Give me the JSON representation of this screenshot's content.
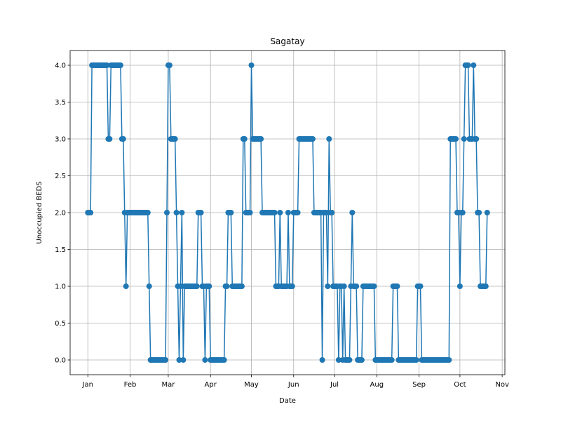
{
  "chart_data": {
    "type": "line",
    "title": "Sagatay",
    "xlabel": "Date",
    "ylabel": "Unoccupied BEDS",
    "x_ticks": [
      "Jan",
      "Feb",
      "Mar",
      "Apr",
      "May",
      "Jun",
      "Jul",
      "Aug",
      "Sep",
      "Oct",
      "Nov"
    ],
    "y_ticks": [
      "0.0",
      "0.5",
      "1.0",
      "1.5",
      "2.0",
      "2.5",
      "3.0",
      "3.5",
      "4.0"
    ],
    "xlim": [
      "2023-12-19",
      "2023-11-03"
    ],
    "ylim": [
      -0.2,
      4.2
    ],
    "grid": true,
    "line_color": "#1f77b4",
    "marker": "circle",
    "series": [
      {
        "values": [
          [
            "2023-01-01",
            2
          ],
          [
            "2023-01-02",
            2
          ],
          [
            "2023-01-03",
            2
          ],
          [
            "2023-01-04",
            4
          ],
          [
            "2023-01-05",
            4
          ],
          [
            "2023-01-06",
            4
          ],
          [
            "2023-01-07",
            4
          ],
          [
            "2023-01-08",
            4
          ],
          [
            "2023-01-09",
            4
          ],
          [
            "2023-01-10",
            4
          ],
          [
            "2023-01-11",
            4
          ],
          [
            "2023-01-12",
            4
          ],
          [
            "2023-01-13",
            4
          ],
          [
            "2023-01-14",
            4
          ],
          [
            "2023-01-15",
            4
          ],
          [
            "2023-01-16",
            3
          ],
          [
            "2023-01-17",
            3
          ],
          [
            "2023-01-18",
            4
          ],
          [
            "2023-01-19",
            4
          ],
          [
            "2023-01-20",
            4
          ],
          [
            "2023-01-21",
            4
          ],
          [
            "2023-01-22",
            4
          ],
          [
            "2023-01-23",
            4
          ],
          [
            "2023-01-24",
            4
          ],
          [
            "2023-01-25",
            4
          ],
          [
            "2023-01-26",
            3
          ],
          [
            "2023-01-27",
            3
          ],
          [
            "2023-01-28",
            2
          ],
          [
            "2023-01-29",
            1
          ],
          [
            "2023-01-30",
            2
          ],
          [
            "2023-01-31",
            2
          ],
          [
            "2023-02-01",
            2
          ],
          [
            "2023-02-02",
            2
          ],
          [
            "2023-02-03",
            2
          ],
          [
            "2023-02-04",
            2
          ],
          [
            "2023-02-05",
            2
          ],
          [
            "2023-02-06",
            2
          ],
          [
            "2023-02-07",
            2
          ],
          [
            "2023-02-08",
            2
          ],
          [
            "2023-02-09",
            2
          ],
          [
            "2023-02-10",
            2
          ],
          [
            "2023-02-11",
            2
          ],
          [
            "2023-02-12",
            2
          ],
          [
            "2023-02-13",
            2
          ],
          [
            "2023-02-14",
            2
          ],
          [
            "2023-02-15",
            1
          ],
          [
            "2023-02-16",
            0
          ],
          [
            "2023-02-17",
            0
          ],
          [
            "2023-02-18",
            0
          ],
          [
            "2023-02-19",
            0
          ],
          [
            "2023-02-20",
            0
          ],
          [
            "2023-02-21",
            0
          ],
          [
            "2023-02-22",
            0
          ],
          [
            "2023-02-23",
            0
          ],
          [
            "2023-02-24",
            0
          ],
          [
            "2023-02-25",
            0
          ],
          [
            "2023-02-26",
            0
          ],
          [
            "2023-02-27",
            0
          ],
          [
            "2023-02-28",
            2
          ],
          [
            "2023-03-01",
            4
          ],
          [
            "2023-03-02",
            4
          ],
          [
            "2023-03-03",
            3
          ],
          [
            "2023-03-04",
            3
          ],
          [
            "2023-03-05",
            3
          ],
          [
            "2023-03-06",
            3
          ],
          [
            "2023-03-07",
            2
          ],
          [
            "2023-03-08",
            1
          ],
          [
            "2023-03-09",
            0
          ],
          [
            "2023-03-10",
            1
          ],
          [
            "2023-03-11",
            2
          ],
          [
            "2023-03-12",
            0
          ],
          [
            "2023-03-13",
            1
          ],
          [
            "2023-03-14",
            1
          ],
          [
            "2023-03-15",
            1
          ],
          [
            "2023-03-16",
            1
          ],
          [
            "2023-03-17",
            1
          ],
          [
            "2023-03-18",
            1
          ],
          [
            "2023-03-19",
            1
          ],
          [
            "2023-03-20",
            1
          ],
          [
            "2023-03-21",
            1
          ],
          [
            "2023-03-22",
            1
          ],
          [
            "2023-03-23",
            2
          ],
          [
            "2023-03-24",
            2
          ],
          [
            "2023-03-25",
            2
          ],
          [
            "2023-03-26",
            1
          ],
          [
            "2023-03-27",
            1
          ],
          [
            "2023-03-28",
            0
          ],
          [
            "2023-03-29",
            1
          ],
          [
            "2023-03-30",
            1
          ],
          [
            "2023-03-31",
            1
          ],
          [
            "2023-04-01",
            0
          ],
          [
            "2023-04-02",
            0
          ],
          [
            "2023-04-03",
            0
          ],
          [
            "2023-04-04",
            0
          ],
          [
            "2023-04-05",
            0
          ],
          [
            "2023-04-06",
            0
          ],
          [
            "2023-04-07",
            0
          ],
          [
            "2023-04-08",
            0
          ],
          [
            "2023-04-09",
            0
          ],
          [
            "2023-04-10",
            0
          ],
          [
            "2023-04-11",
            0
          ],
          [
            "2023-04-12",
            1
          ],
          [
            "2023-04-13",
            1
          ],
          [
            "2023-04-14",
            2
          ],
          [
            "2023-04-15",
            2
          ],
          [
            "2023-04-16",
            2
          ],
          [
            "2023-04-17",
            1
          ],
          [
            "2023-04-18",
            1
          ],
          [
            "2023-04-19",
            1
          ],
          [
            "2023-04-20",
            1
          ],
          [
            "2023-04-21",
            1
          ],
          [
            "2023-04-22",
            1
          ],
          [
            "2023-04-23",
            1
          ],
          [
            "2023-04-24",
            1
          ],
          [
            "2023-04-25",
            3
          ],
          [
            "2023-04-26",
            3
          ],
          [
            "2023-04-27",
            2
          ],
          [
            "2023-04-28",
            2
          ],
          [
            "2023-04-29",
            2
          ],
          [
            "2023-04-30",
            2
          ],
          [
            "2023-05-01",
            4
          ],
          [
            "2023-05-02",
            3
          ],
          [
            "2023-05-03",
            3
          ],
          [
            "2023-05-04",
            3
          ],
          [
            "2023-05-05",
            3
          ],
          [
            "2023-05-06",
            3
          ],
          [
            "2023-05-07",
            3
          ],
          [
            "2023-05-08",
            3
          ],
          [
            "2023-05-09",
            2
          ],
          [
            "2023-05-10",
            2
          ],
          [
            "2023-05-11",
            2
          ],
          [
            "2023-05-12",
            2
          ],
          [
            "2023-05-13",
            2
          ],
          [
            "2023-05-14",
            2
          ],
          [
            "2023-05-15",
            2
          ],
          [
            "2023-05-16",
            2
          ],
          [
            "2023-05-17",
            2
          ],
          [
            "2023-05-18",
            2
          ],
          [
            "2023-05-19",
            1
          ],
          [
            "2023-05-20",
            1
          ],
          [
            "2023-05-21",
            1
          ],
          [
            "2023-05-22",
            2
          ],
          [
            "2023-05-23",
            1
          ],
          [
            "2023-05-24",
            1
          ],
          [
            "2023-05-25",
            1
          ],
          [
            "2023-05-26",
            1
          ],
          [
            "2023-05-27",
            1
          ],
          [
            "2023-05-28",
            2
          ],
          [
            "2023-05-29",
            1
          ],
          [
            "2023-05-30",
            1
          ],
          [
            "2023-05-31",
            1
          ],
          [
            "2023-06-01",
            2
          ],
          [
            "2023-06-02",
            2
          ],
          [
            "2023-06-03",
            2
          ],
          [
            "2023-06-04",
            2
          ],
          [
            "2023-06-05",
            3
          ],
          [
            "2023-06-06",
            3
          ],
          [
            "2023-06-07",
            3
          ],
          [
            "2023-06-08",
            3
          ],
          [
            "2023-06-09",
            3
          ],
          [
            "2023-06-10",
            3
          ],
          [
            "2023-06-11",
            3
          ],
          [
            "2023-06-12",
            3
          ],
          [
            "2023-06-13",
            3
          ],
          [
            "2023-06-14",
            3
          ],
          [
            "2023-06-15",
            3
          ],
          [
            "2023-06-16",
            2
          ],
          [
            "2023-06-17",
            2
          ],
          [
            "2023-06-18",
            2
          ],
          [
            "2023-06-19",
            2
          ],
          [
            "2023-06-20",
            2
          ],
          [
            "2023-06-21",
            2
          ],
          [
            "2023-06-22",
            0
          ],
          [
            "2023-06-23",
            2
          ],
          [
            "2023-06-24",
            2
          ],
          [
            "2023-06-25",
            2
          ],
          [
            "2023-06-26",
            1
          ],
          [
            "2023-06-27",
            3
          ],
          [
            "2023-06-28",
            2
          ],
          [
            "2023-06-29",
            2
          ],
          [
            "2023-06-30",
            1
          ],
          [
            "2023-07-01",
            1
          ],
          [
            "2023-07-02",
            1
          ],
          [
            "2023-07-03",
            1
          ],
          [
            "2023-07-04",
            0
          ],
          [
            "2023-07-05",
            1
          ],
          [
            "2023-07-06",
            1
          ],
          [
            "2023-07-07",
            0
          ],
          [
            "2023-07-08",
            1
          ],
          [
            "2023-07-09",
            0
          ],
          [
            "2023-07-10",
            0
          ],
          [
            "2023-07-11",
            0
          ],
          [
            "2023-07-12",
            0
          ],
          [
            "2023-07-13",
            1
          ],
          [
            "2023-07-14",
            2
          ],
          [
            "2023-07-15",
            1
          ],
          [
            "2023-07-16",
            1
          ],
          [
            "2023-07-17",
            1
          ],
          [
            "2023-07-18",
            0
          ],
          [
            "2023-07-19",
            0
          ],
          [
            "2023-07-20",
            0
          ],
          [
            "2023-07-21",
            0
          ],
          [
            "2023-07-22",
            1
          ],
          [
            "2023-07-23",
            1
          ],
          [
            "2023-07-24",
            1
          ],
          [
            "2023-07-25",
            1
          ],
          [
            "2023-07-26",
            1
          ],
          [
            "2023-07-27",
            1
          ],
          [
            "2023-07-28",
            1
          ],
          [
            "2023-07-29",
            1
          ],
          [
            "2023-07-30",
            1
          ],
          [
            "2023-07-31",
            0
          ],
          [
            "2023-08-01",
            0
          ],
          [
            "2023-08-02",
            0
          ],
          [
            "2023-08-03",
            0
          ],
          [
            "2023-08-04",
            0
          ],
          [
            "2023-08-05",
            0
          ],
          [
            "2023-08-06",
            0
          ],
          [
            "2023-08-07",
            0
          ],
          [
            "2023-08-08",
            0
          ],
          [
            "2023-08-09",
            0
          ],
          [
            "2023-08-10",
            0
          ],
          [
            "2023-08-11",
            0
          ],
          [
            "2023-08-12",
            0
          ],
          [
            "2023-08-13",
            1
          ],
          [
            "2023-08-14",
            1
          ],
          [
            "2023-08-15",
            1
          ],
          [
            "2023-08-16",
            1
          ],
          [
            "2023-08-17",
            0
          ],
          [
            "2023-08-18",
            0
          ],
          [
            "2023-08-19",
            0
          ],
          [
            "2023-08-20",
            0
          ],
          [
            "2023-08-21",
            0
          ],
          [
            "2023-08-22",
            0
          ],
          [
            "2023-08-23",
            0
          ],
          [
            "2023-08-24",
            0
          ],
          [
            "2023-08-25",
            0
          ],
          [
            "2023-08-26",
            0
          ],
          [
            "2023-08-27",
            0
          ],
          [
            "2023-08-28",
            0
          ],
          [
            "2023-08-29",
            0
          ],
          [
            "2023-08-30",
            0
          ],
          [
            "2023-08-31",
            1
          ],
          [
            "2023-09-01",
            1
          ],
          [
            "2023-09-02",
            1
          ],
          [
            "2023-09-03",
            0
          ],
          [
            "2023-09-04",
            0
          ],
          [
            "2023-09-05",
            0
          ],
          [
            "2023-09-06",
            0
          ],
          [
            "2023-09-07",
            0
          ],
          [
            "2023-09-08",
            0
          ],
          [
            "2023-09-09",
            0
          ],
          [
            "2023-09-10",
            0
          ],
          [
            "2023-09-11",
            0
          ],
          [
            "2023-09-12",
            0
          ],
          [
            "2023-09-13",
            0
          ],
          [
            "2023-09-14",
            0
          ],
          [
            "2023-09-15",
            0
          ],
          [
            "2023-09-16",
            0
          ],
          [
            "2023-09-17",
            0
          ],
          [
            "2023-09-18",
            0
          ],
          [
            "2023-09-19",
            0
          ],
          [
            "2023-09-20",
            0
          ],
          [
            "2023-09-21",
            0
          ],
          [
            "2023-09-22",
            0
          ],
          [
            "2023-09-23",
            0
          ],
          [
            "2023-09-24",
            3
          ],
          [
            "2023-09-25",
            3
          ],
          [
            "2023-09-26",
            3
          ],
          [
            "2023-09-27",
            3
          ],
          [
            "2023-09-28",
            3
          ],
          [
            "2023-09-29",
            2
          ],
          [
            "2023-09-30",
            2
          ],
          [
            "2023-10-01",
            1
          ],
          [
            "2023-10-02",
            2
          ],
          [
            "2023-10-03",
            2
          ],
          [
            "2023-10-04",
            3
          ],
          [
            "2023-10-05",
            4
          ],
          [
            "2023-10-06",
            4
          ],
          [
            "2023-10-07",
            4
          ],
          [
            "2023-10-08",
            3
          ],
          [
            "2023-10-09",
            3
          ],
          [
            "2023-10-10",
            3
          ],
          [
            "2023-10-11",
            4
          ],
          [
            "2023-10-12",
            3
          ],
          [
            "2023-10-13",
            3
          ],
          [
            "2023-10-14",
            2
          ],
          [
            "2023-10-15",
            2
          ],
          [
            "2023-10-16",
            1
          ],
          [
            "2023-10-17",
            1
          ],
          [
            "2023-10-18",
            1
          ],
          [
            "2023-10-19",
            1
          ],
          [
            "2023-10-20",
            1
          ],
          [
            "2023-10-21",
            2
          ]
        ]
      }
    ]
  }
}
